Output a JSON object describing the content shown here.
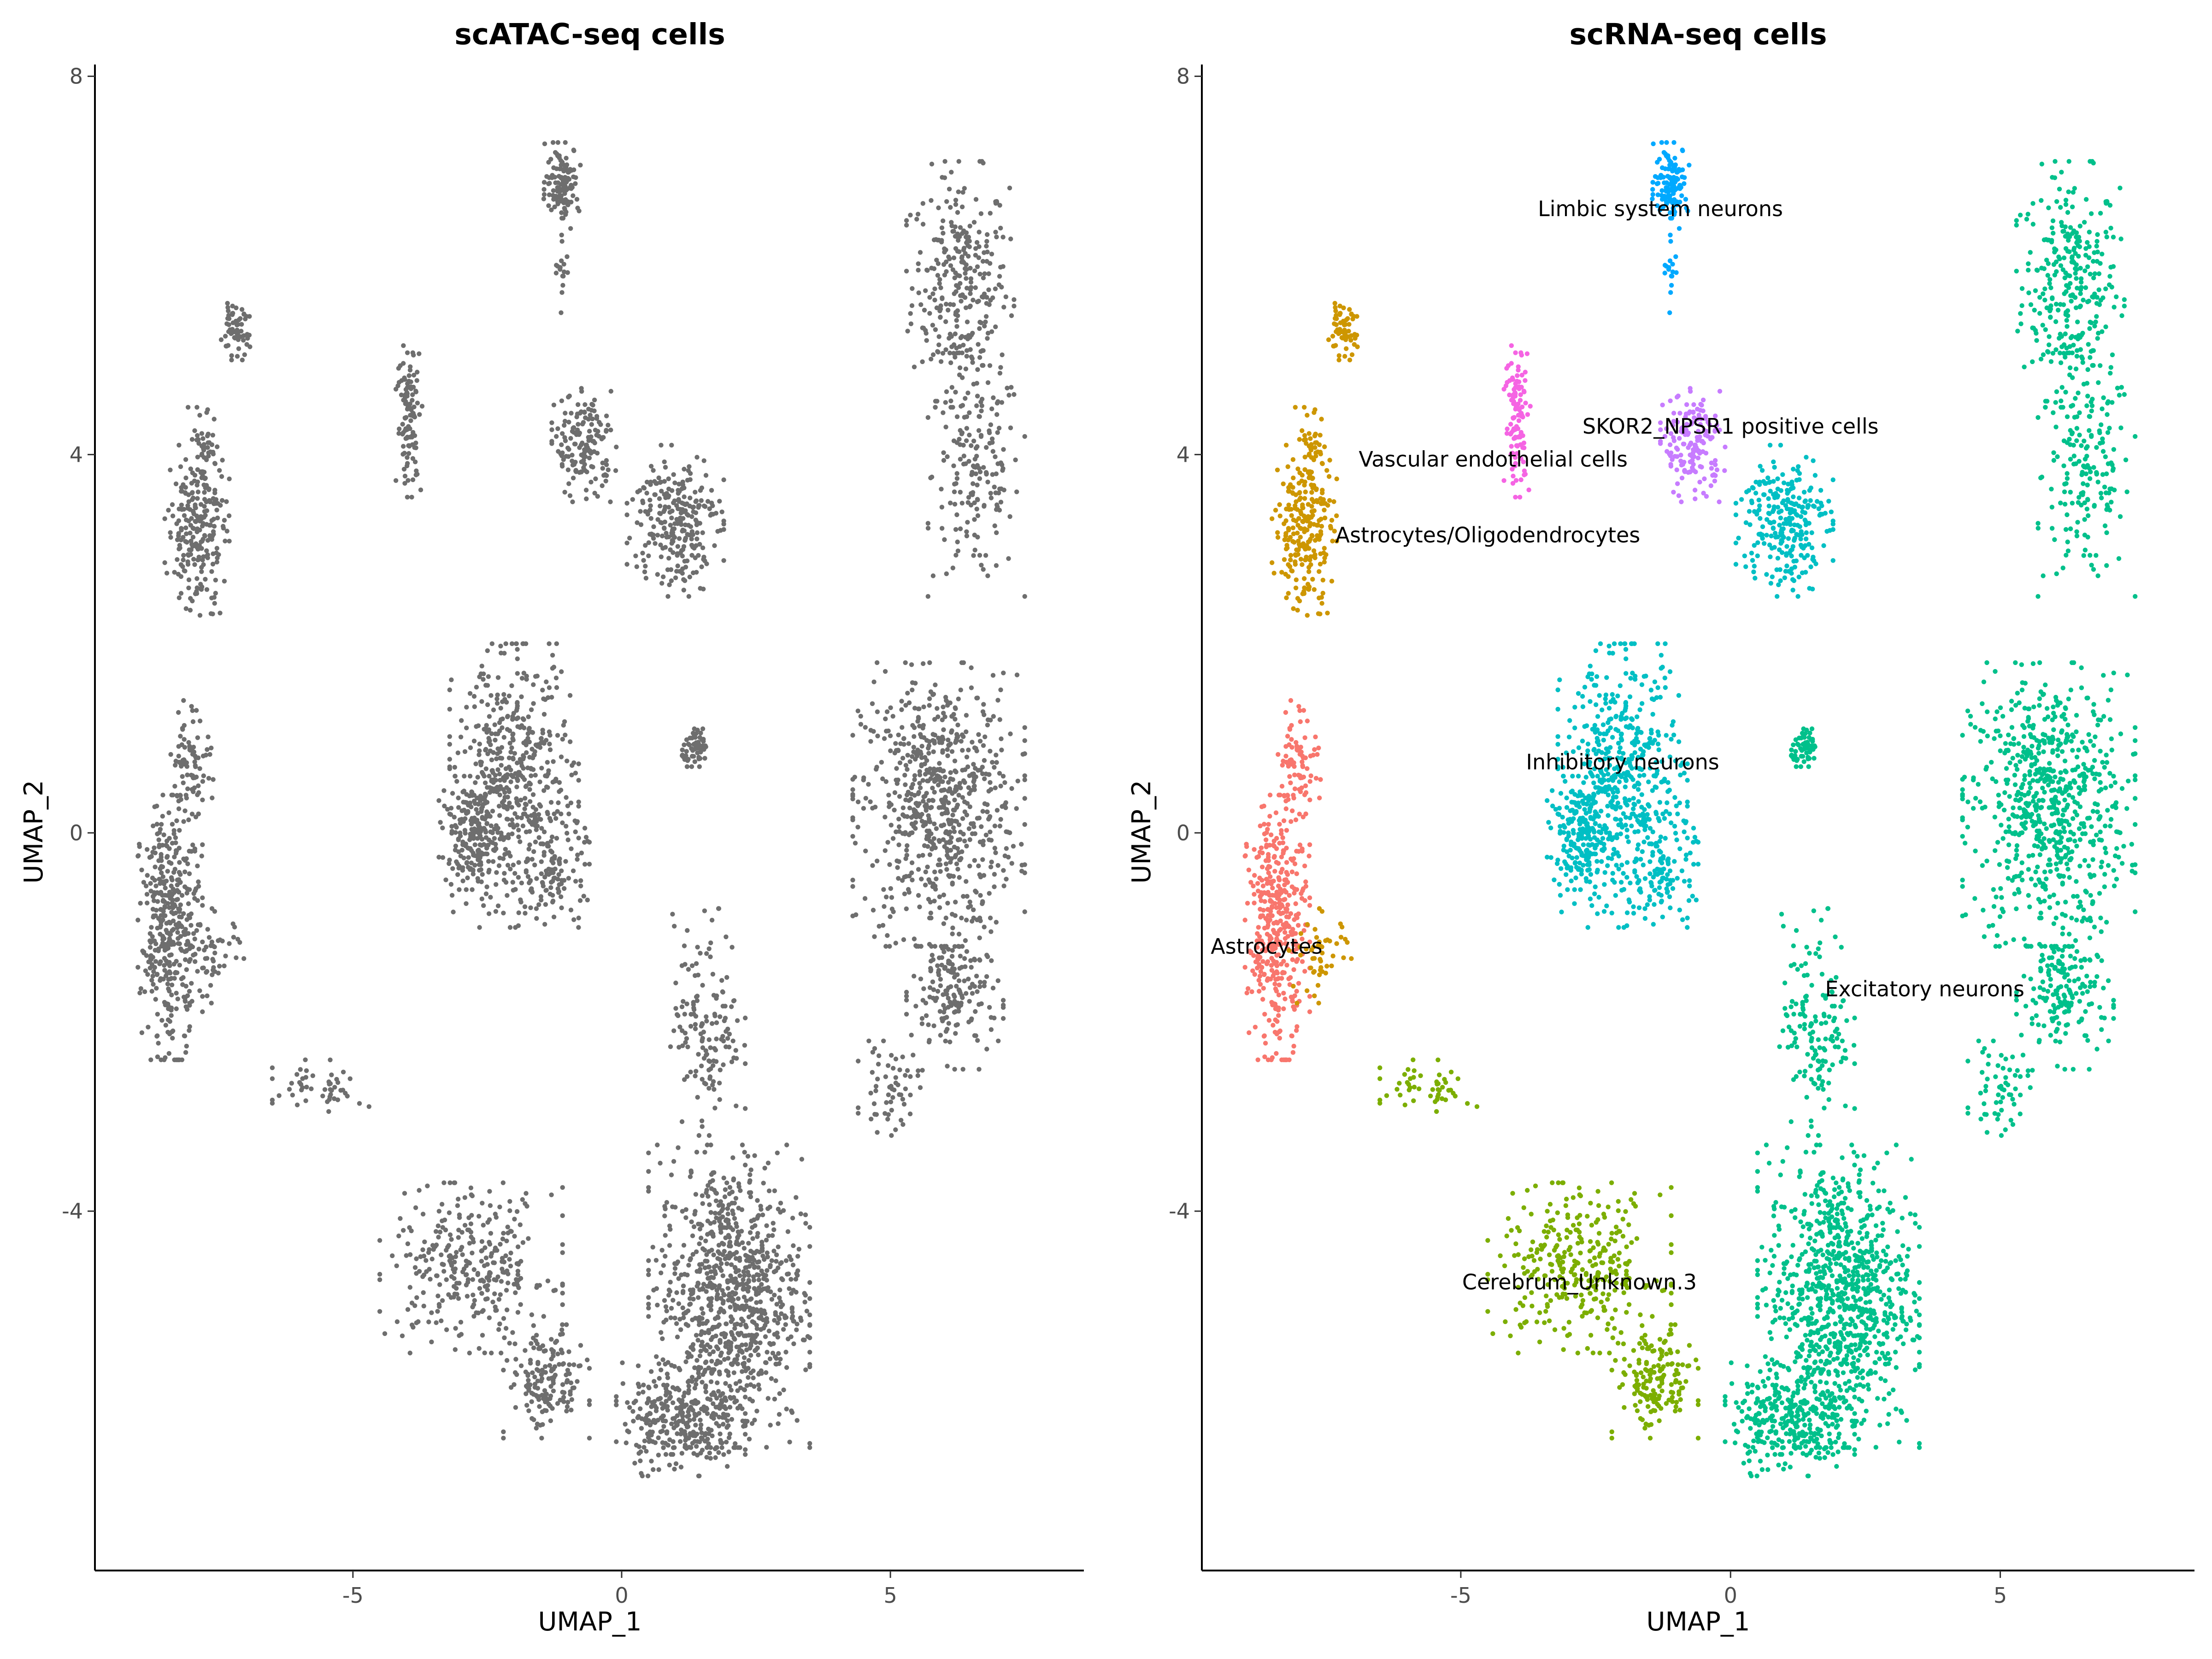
{
  "chart_data": [
    {
      "type": "scatter",
      "title": "scATAC-seq cells",
      "xlabel": "UMAP_1",
      "ylabel": "UMAP_2",
      "xlim": [
        -9.8,
        8.6
      ],
      "ylim": [
        -7.8,
        8.1
      ],
      "xticks": [
        "-5",
        "0",
        "5"
      ],
      "yticks": [
        "-4",
        "0",
        "4",
        "8"
      ],
      "grid": false,
      "legend": "none",
      "point_color": "#6e6e6e",
      "point_source": "same cluster shapes as the scRNA-seq panel, all drawn in grey"
    },
    {
      "type": "scatter",
      "title": "scRNA-seq cells",
      "xlabel": "UMAP_1",
      "ylabel": "UMAP_2",
      "xlim": [
        -9.8,
        8.6
      ],
      "ylim": [
        -7.8,
        8.1
      ],
      "xticks": [
        "-5",
        "0",
        "5"
      ],
      "yticks": [
        "-4",
        "0",
        "4",
        "8"
      ],
      "grid": false,
      "legend": "none",
      "series": [
        {
          "name": "Excitatory neurons",
          "color": "#00c08b",
          "label_pos": [
            3.6,
            -1.65
          ],
          "clusters": [
            {
              "cx": 6.3,
              "cy": 5.8,
              "rx": 1.0,
              "ry": 1.3,
              "n": 300
            },
            {
              "cx": 6.6,
              "cy": 3.8,
              "rx": 0.9,
              "ry": 1.3,
              "n": 180
            },
            {
              "cx": 5.9,
              "cy": 0.3,
              "rx": 1.6,
              "ry": 1.5,
              "n": 700
            },
            {
              "cx": 6.2,
              "cy": -1.7,
              "rx": 0.9,
              "ry": 0.8,
              "n": 180
            },
            {
              "cx": 5.0,
              "cy": -2.7,
              "rx": 0.6,
              "ry": 0.5,
              "n": 60
            },
            {
              "cx": 2.0,
              "cy": -4.9,
              "rx": 1.5,
              "ry": 1.6,
              "n": 900
            },
            {
              "cx": 1.6,
              "cy": -2.0,
              "rx": 0.7,
              "ry": 1.2,
              "n": 150
            },
            {
              "cx": 1.1,
              "cy": -6.2,
              "rx": 1.2,
              "ry": 0.6,
              "n": 300
            },
            {
              "cx": 1.4,
              "cy": 0.9,
              "rx": 0.3,
              "ry": 0.2,
              "n": 60
            }
          ]
        },
        {
          "name": "Cerebrum_Unknown.3",
          "color": "#7cae00",
          "label_pos": [
            -2.8,
            -4.75
          ],
          "clusters": [
            {
              "cx": -2.8,
              "cy": -4.6,
              "rx": 1.7,
              "ry": 0.9,
              "n": 320
            },
            {
              "cx": -1.4,
              "cy": -5.8,
              "rx": 0.8,
              "ry": 0.6,
              "n": 160
            },
            {
              "cx": -5.6,
              "cy": -2.7,
              "rx": 0.9,
              "ry": 0.3,
              "n": 50
            }
          ]
        },
        {
          "name": "Astrocytes",
          "color": "#f8766d",
          "label_pos": [
            -8.6,
            -1.2
          ],
          "clusters": [
            {
              "cx": -8.4,
              "cy": -1.0,
              "rx": 0.6,
              "ry": 1.4,
              "n": 420
            },
            {
              "cx": -8.0,
              "cy": 0.8,
              "rx": 0.4,
              "ry": 0.6,
              "n": 80
            }
          ]
        },
        {
          "name": "Astrocytes/Oligodendrocytes",
          "color": "#cd9600",
          "label_pos": [
            -4.5,
            3.15
          ],
          "clusters": [
            {
              "cx": -7.9,
              "cy": 3.2,
              "rx": 0.6,
              "ry": 0.9,
              "n": 230
            },
            {
              "cx": -7.8,
              "cy": 4.0,
              "rx": 0.4,
              "ry": 0.5,
              "n": 50
            },
            {
              "cx": -7.2,
              "cy": 5.3,
              "rx": 0.3,
              "ry": 0.3,
              "n": 60
            },
            {
              "cx": -7.6,
              "cy": -1.3,
              "rx": 0.6,
              "ry": 0.5,
              "n": 50
            }
          ]
        },
        {
          "name": "Vascular endothelial cells",
          "color": "#f564e3",
          "label_pos": [
            -4.4,
            3.95
          ],
          "clusters": [
            {
              "cx": -3.95,
              "cy": 4.4,
              "rx": 0.25,
              "ry": 0.85,
              "n": 110
            }
          ]
        },
        {
          "name": "Limbic system neurons",
          "color": "#00a9ff",
          "label_pos": [
            -1.3,
            6.6
          ],
          "clusters": [
            {
              "cx": -1.1,
              "cy": 6.9,
              "rx": 0.35,
              "ry": 0.4,
              "n": 120
            },
            {
              "cx": -1.1,
              "cy": 6.0,
              "rx": 0.15,
              "ry": 0.5,
              "n": 20
            }
          ]
        },
        {
          "name": "SKOR2_NPSR1 positive cells",
          "color": "#c77cff",
          "label_pos": [
            0.0,
            4.3
          ],
          "clusters": [
            {
              "cx": -0.7,
              "cy": 4.1,
              "rx": 0.6,
              "ry": 0.6,
              "n": 160
            }
          ]
        },
        {
          "name": "Inhibitory neurons",
          "color": "#00bfc4",
          "label_pos": [
            -2.0,
            0.75
          ],
          "clusters": [
            {
              "cx": -2.0,
              "cy": 0.5,
              "rx": 1.2,
              "ry": 1.5,
              "n": 520
            },
            {
              "cx": -2.8,
              "cy": 0.0,
              "rx": 0.6,
              "ry": 0.6,
              "n": 180
            },
            {
              "cx": 1.0,
              "cy": 3.3,
              "rx": 0.9,
              "ry": 0.8,
              "n": 260
            },
            {
              "cx": -1.2,
              "cy": -0.4,
              "rx": 0.6,
              "ry": 0.6,
              "n": 100
            }
          ]
        }
      ]
    }
  ]
}
